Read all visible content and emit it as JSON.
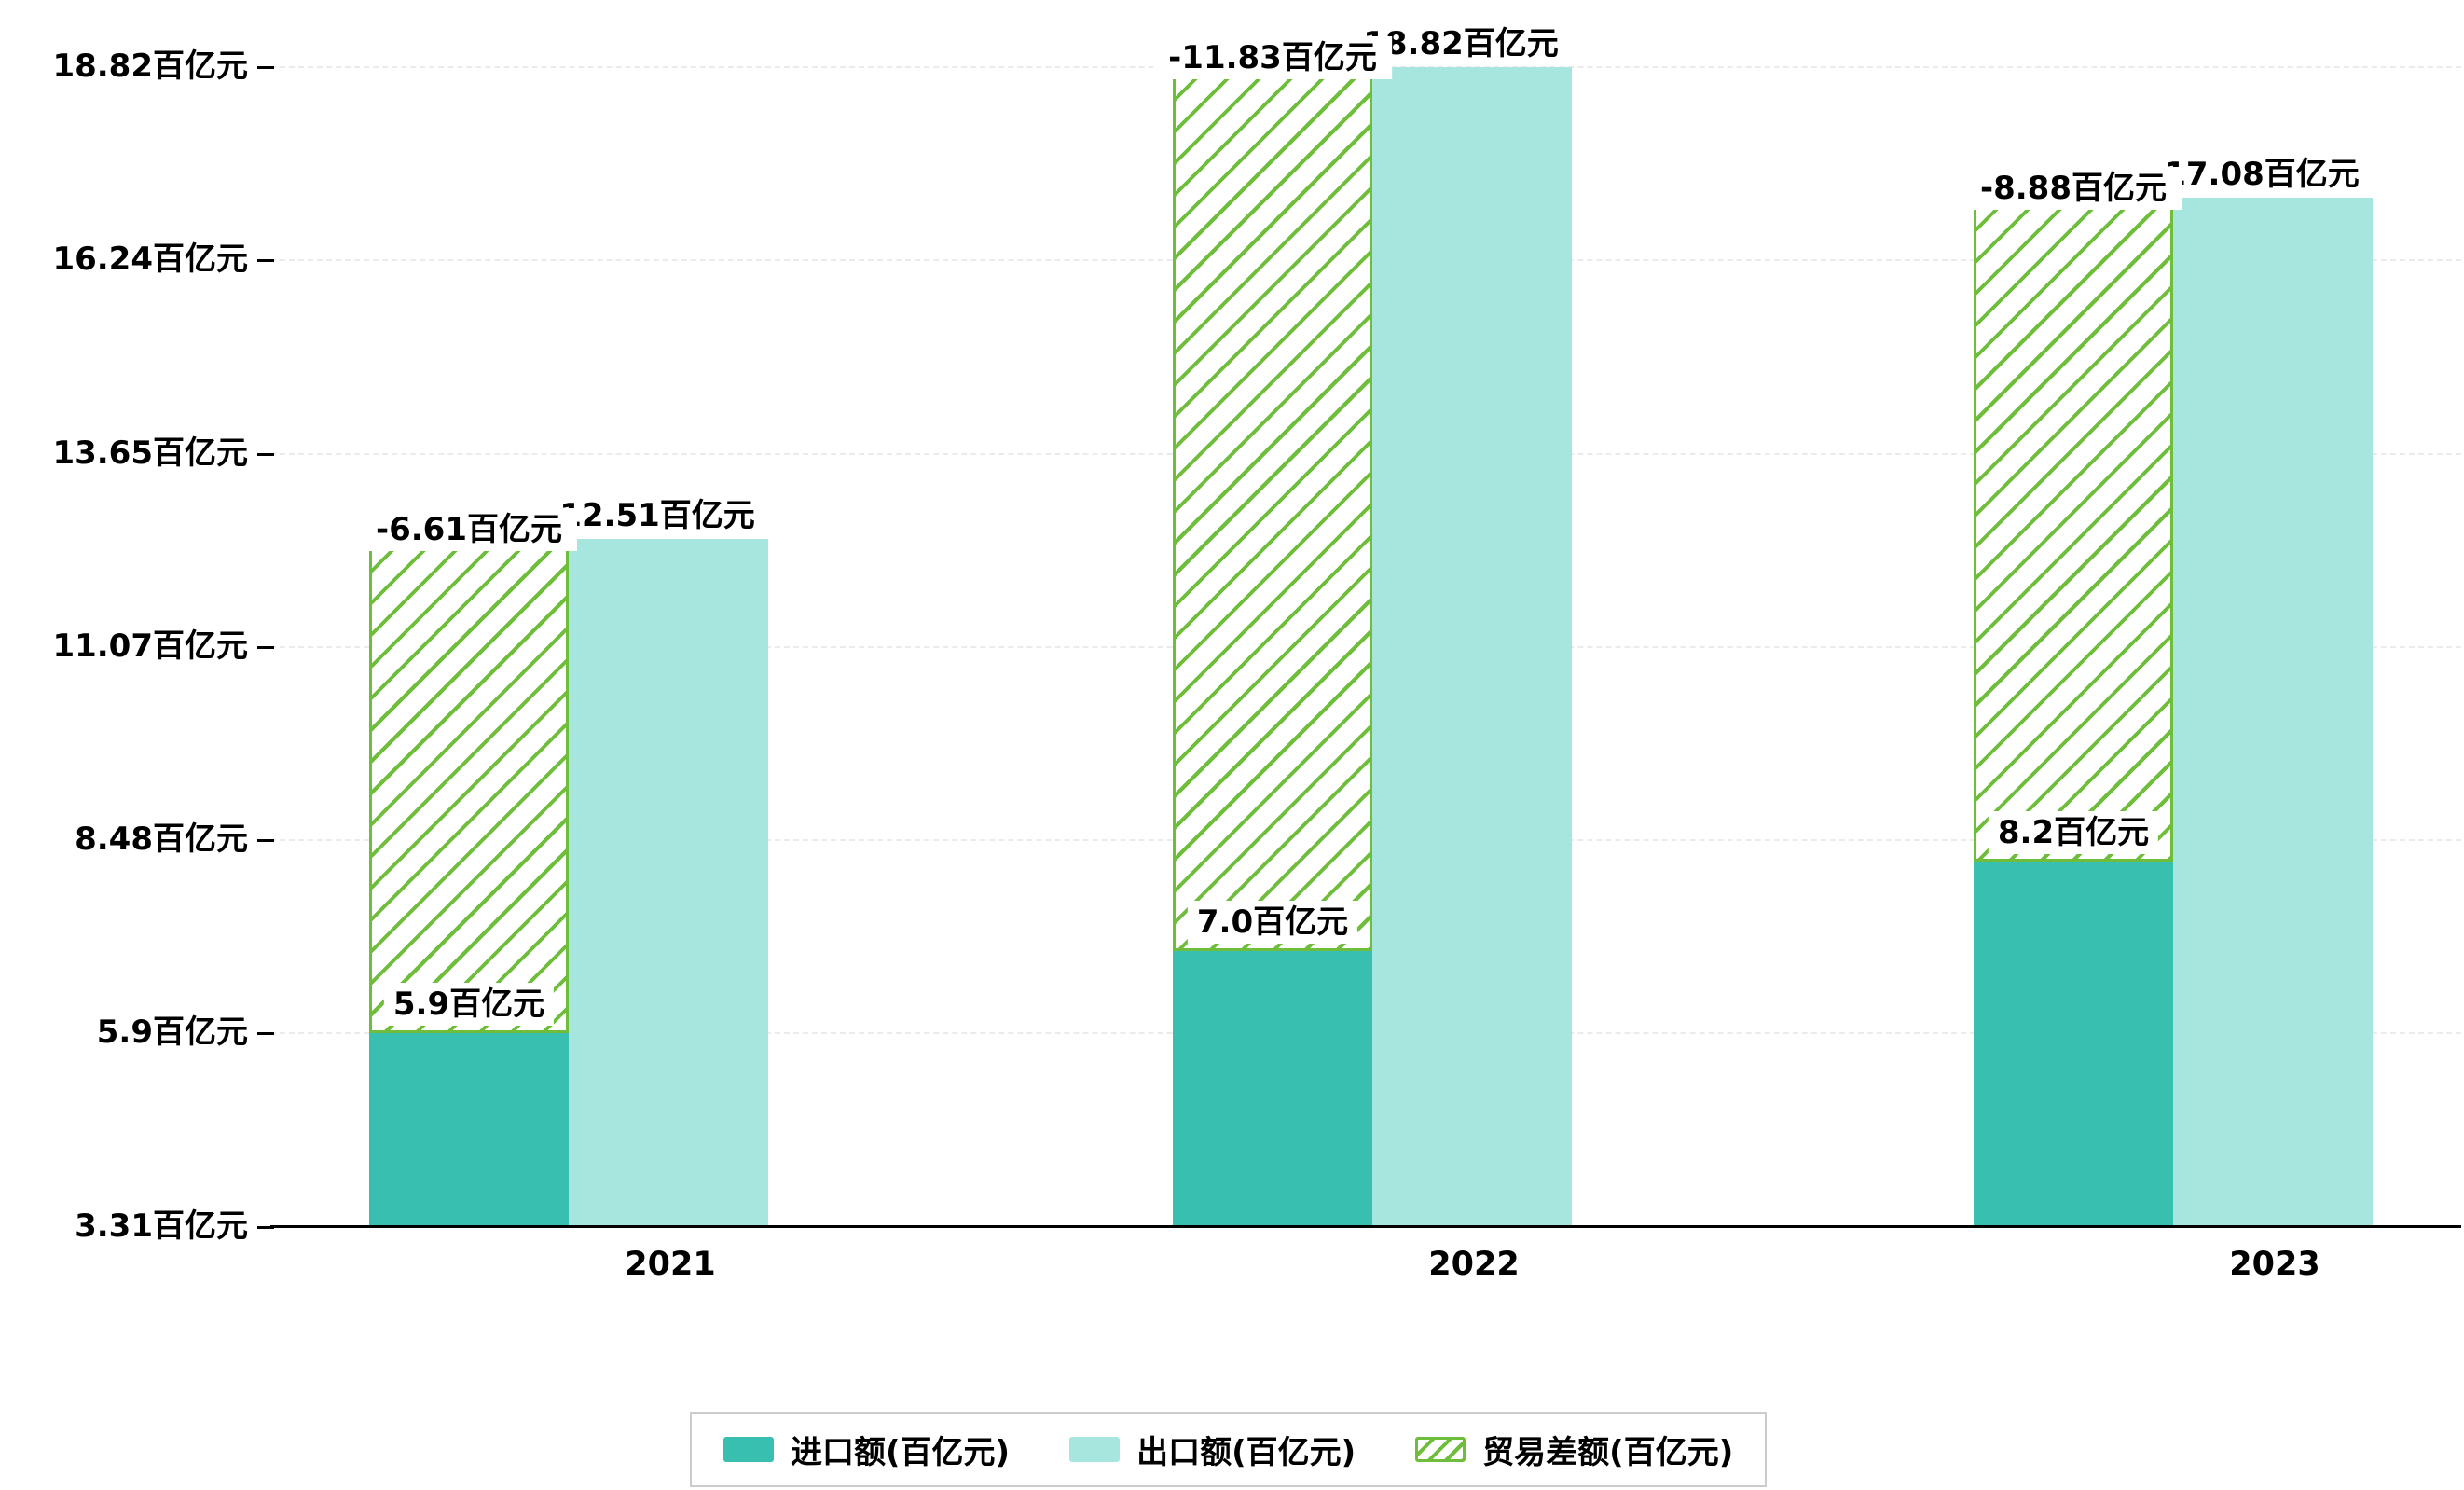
{
  "chart_data": {
    "type": "bar",
    "title": "",
    "categories": [
      "2021",
      "2022",
      "2023"
    ],
    "series": [
      {
        "name": "进口额(百亿元)",
        "type": "bar",
        "values": [
          5.9,
          7.0,
          8.2
        ],
        "labels": [
          "5.9百亿元",
          "7.0百亿元",
          "8.2百亿元"
        ],
        "color": "#38bfaf"
      },
      {
        "name": "出口额(百亿元)",
        "type": "bar",
        "values": [
          12.51,
          18.82,
          17.08
        ],
        "labels": [
          "12.51百亿元",
          "18.82百亿元",
          "17.08百亿元"
        ],
        "color": "#a6e6df"
      },
      {
        "name": "贸易差额(百亿元)",
        "type": "bar",
        "style": "hatched-floating",
        "note": "floating hatched bar drawn over the import column, spanning from the import value up to the export value",
        "values": [
          -6.61,
          -11.83,
          -8.88
        ],
        "labels": [
          "-6.61百亿元",
          "-11.83百亿元",
          "-8.88百亿元"
        ],
        "color": "#6fbe3b"
      }
    ],
    "x_axis": {
      "labels": [
        "2021",
        "2022",
        "2023"
      ]
    },
    "y_axis": {
      "unit": "百亿元",
      "min": 3.31,
      "max": 18.82,
      "ticks": [
        3.31,
        5.9,
        8.48,
        11.07,
        13.65,
        16.24,
        18.82
      ],
      "tick_labels": [
        "3.31百亿元",
        "5.9百亿元",
        "8.48百亿元",
        "11.07百亿元",
        "13.65百亿元",
        "16.24百亿元",
        "18.82百亿元"
      ]
    },
    "legend": {
      "position": "bottom",
      "entries": [
        {
          "label": "进口额(百亿元)",
          "swatch": "solid-teal"
        },
        {
          "label": "出口额(百亿元)",
          "swatch": "solid-light-teal"
        },
        {
          "label": "贸易差额(百亿元)",
          "swatch": "hatched-green"
        }
      ]
    },
    "grid": {
      "horizontal_dashed": true
    }
  },
  "colors": {
    "import_bar": "#38bfaf",
    "export_bar": "#a6e6df",
    "balance_hatch": "#6fbe3b",
    "axis_line": "#000000",
    "gridline": "#ebebeb",
    "text": "#000000",
    "label_bg": "#ffffff",
    "legend_border": "#cccccc"
  }
}
